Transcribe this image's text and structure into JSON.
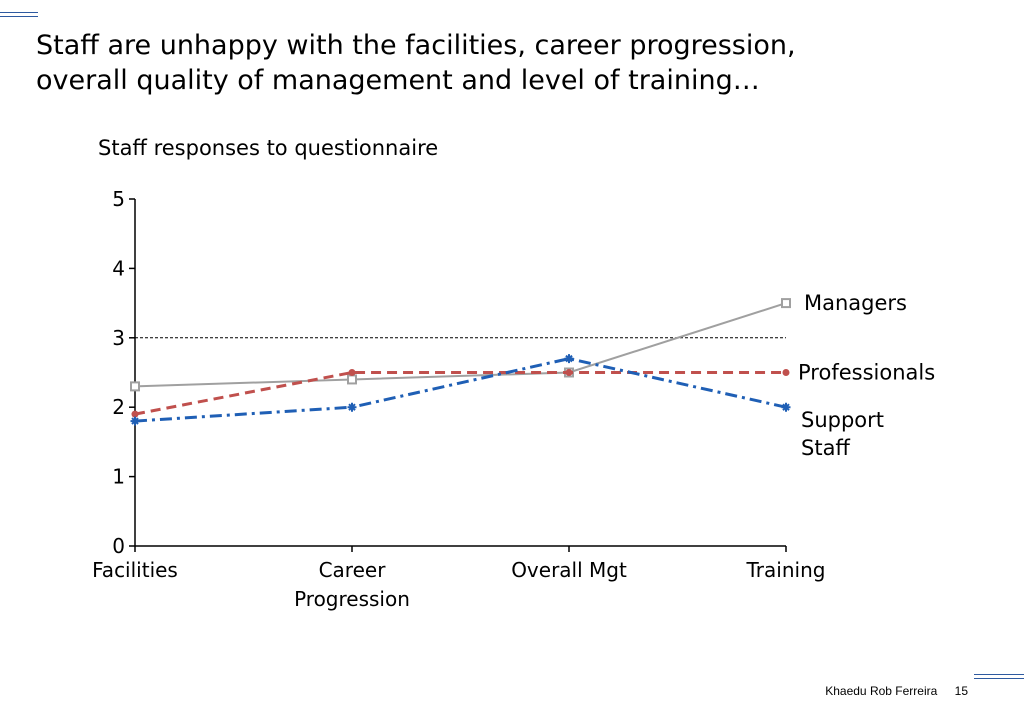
{
  "slide": {
    "title_line1": "Staff are unhappy with the facilities, career progression,",
    "title_line2": "overall quality of management and level of training…",
    "author": "Khaedu Rob Ferreira",
    "page_number": "15"
  },
  "chart_data": {
    "type": "line",
    "title": "Staff responses to questionnaire",
    "categories": [
      "Facilities",
      "Career Progression",
      "Overall Mgt",
      "Training"
    ],
    "category_lines": [
      [
        "Facilities"
      ],
      [
        "Career",
        "Progression"
      ],
      [
        "Overall Mgt"
      ],
      [
        "Training"
      ]
    ],
    "yticks": [
      0,
      1,
      2,
      3,
      4,
      5
    ],
    "ylim": [
      0,
      5
    ],
    "reference_line": 3,
    "series": [
      {
        "name": "Managers",
        "label_lines": [
          "Managers"
        ],
        "values": [
          2.3,
          2.4,
          2.5,
          3.5
        ],
        "color": "#a0a0a0",
        "style": "solid",
        "marker": "square"
      },
      {
        "name": "Professionals",
        "label_lines": [
          "Professionals"
        ],
        "values": [
          1.9,
          2.5,
          2.5,
          2.5
        ],
        "color": "#c0504d",
        "style": "dashed",
        "marker": "circle"
      },
      {
        "name": "Support Staff",
        "label_lines": [
          "Support",
          "Staff"
        ],
        "values": [
          1.8,
          2.0,
          2.7,
          2.0
        ],
        "color": "#1f5fb5",
        "style": "dashdot",
        "marker": "star"
      }
    ]
  }
}
